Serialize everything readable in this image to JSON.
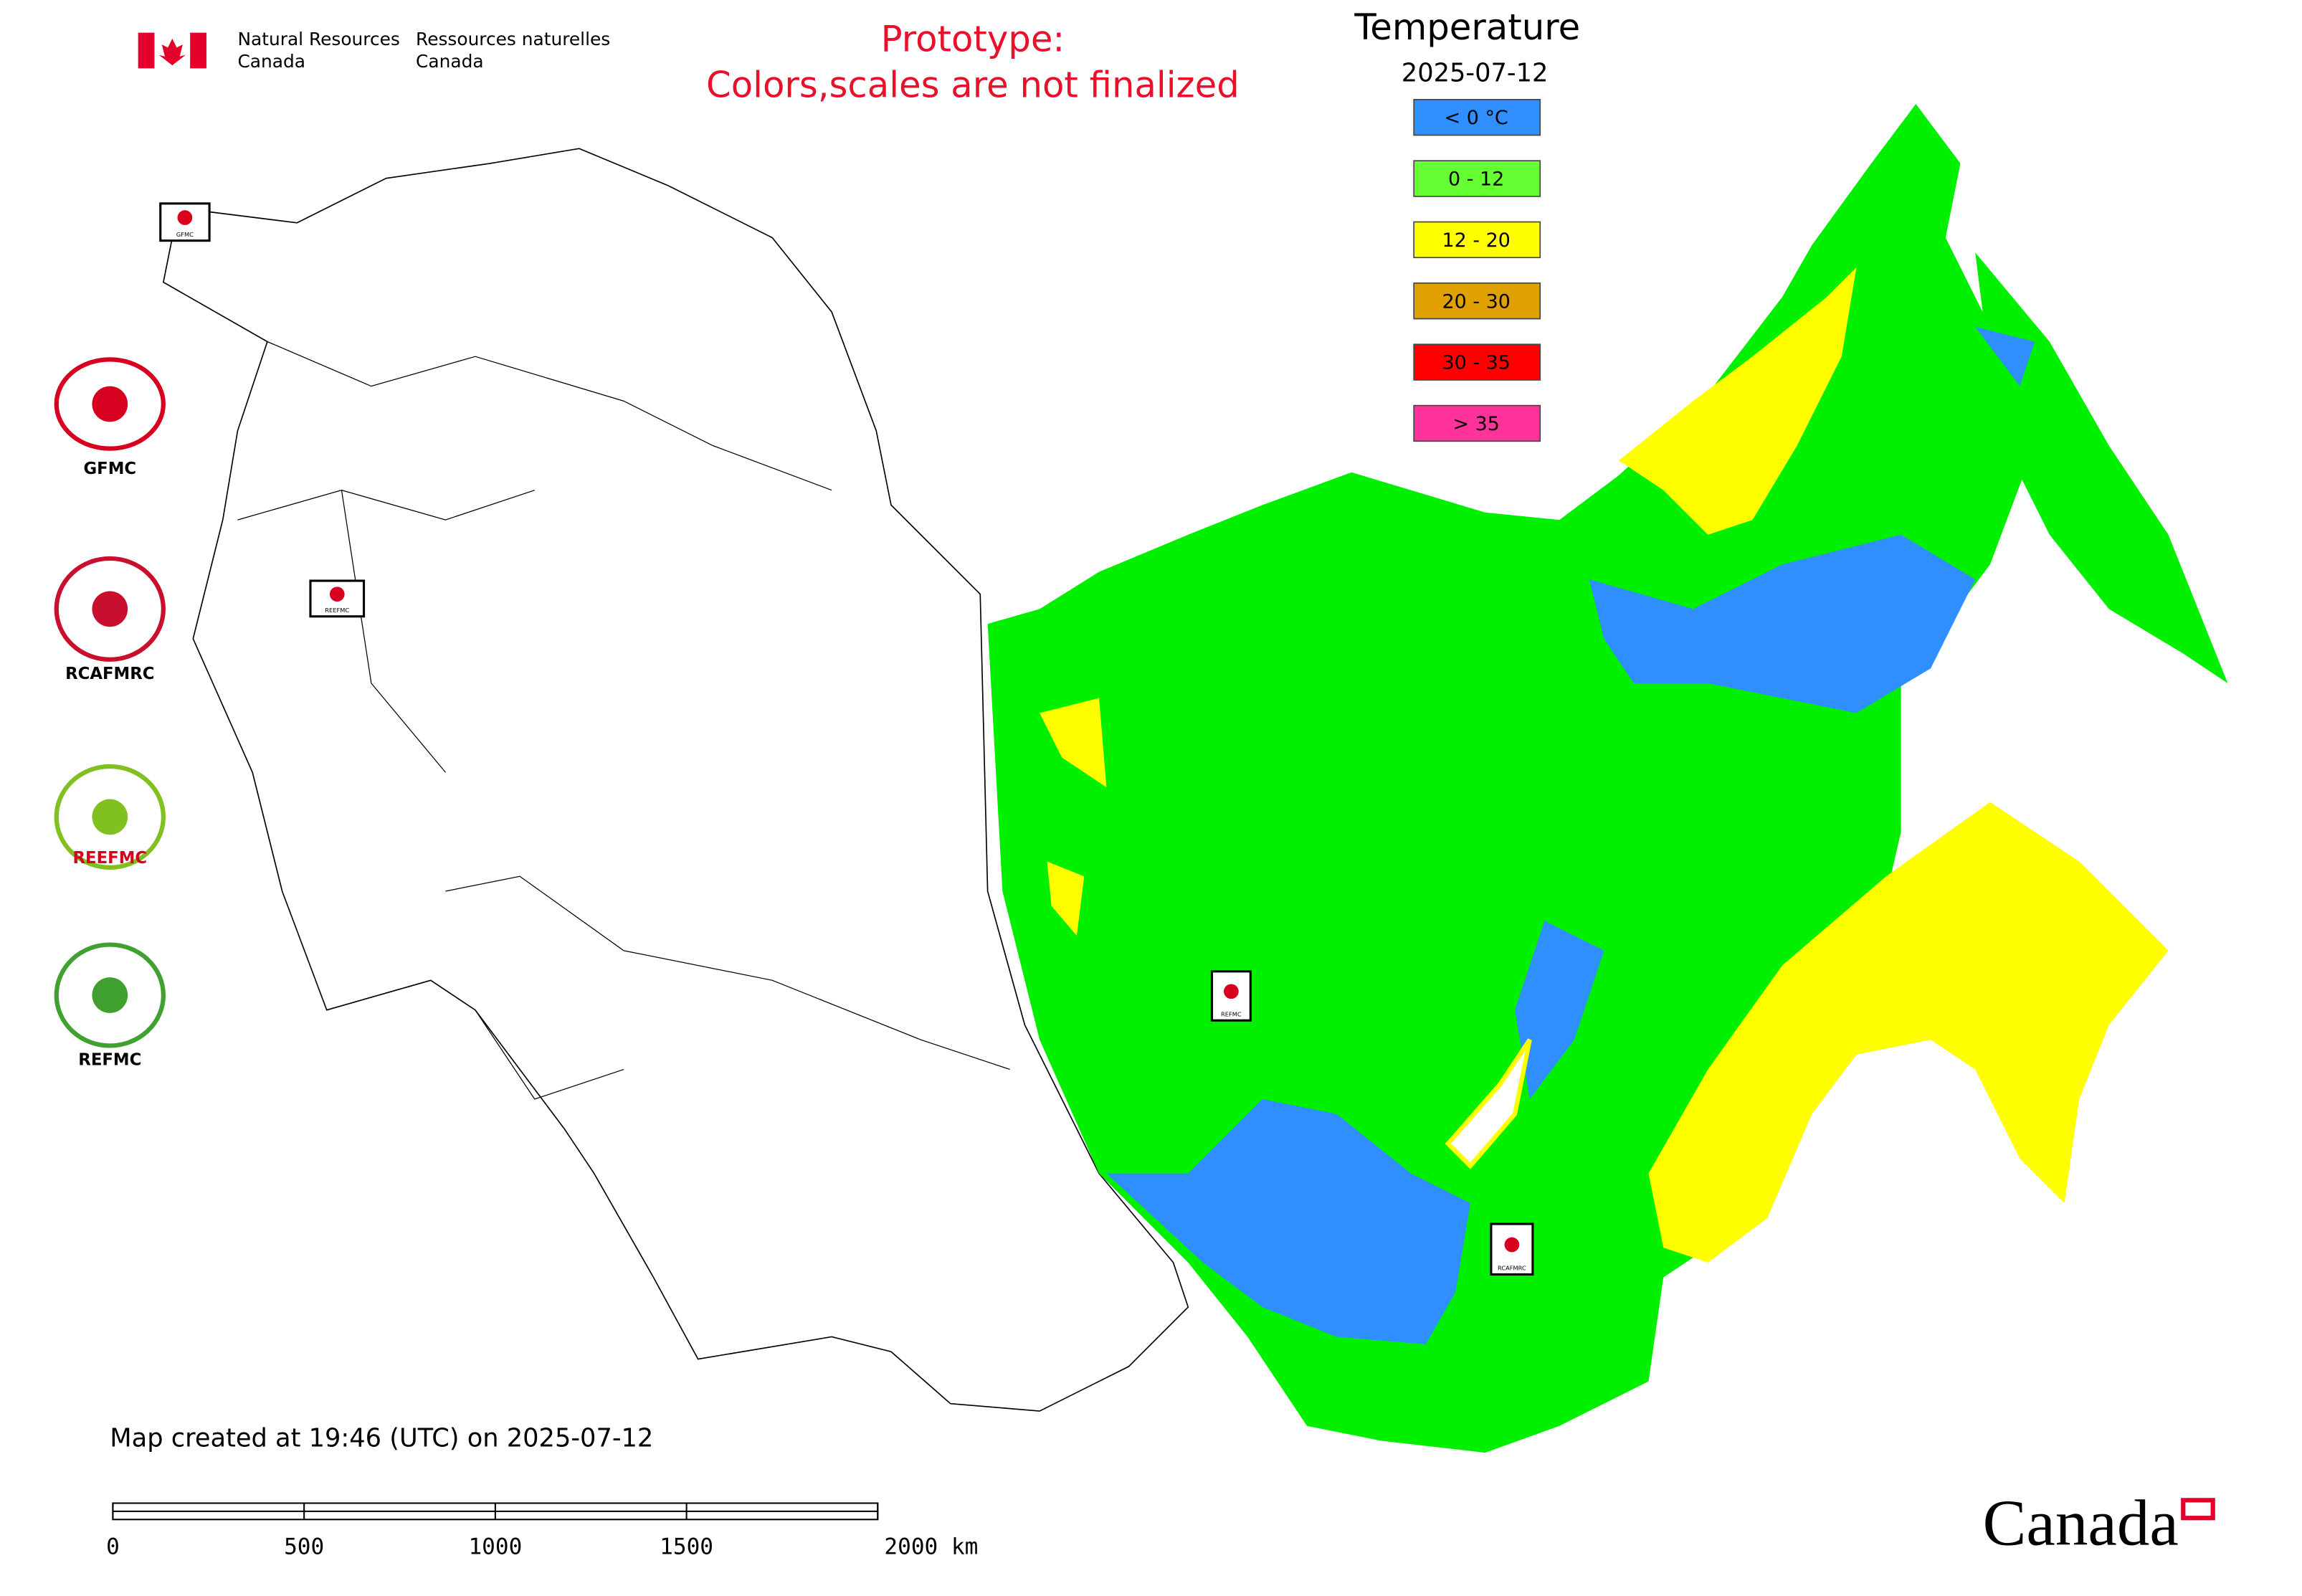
{
  "header": {
    "department_en": [
      "Natural Resources",
      "Canada"
    ],
    "department_fr": [
      "Ressources naturelles",
      "Canada"
    ],
    "notice": [
      "Prototype:",
      "Colors,scales are not finalized"
    ]
  },
  "legend": {
    "title": "Temperature",
    "date": "2025-07-12",
    "items": [
      {
        "label": "< 0 °C",
        "color": "#2f8fff"
      },
      {
        "label": "0 - 12",
        "color": "#66ff33"
      },
      {
        "label": "12 - 20",
        "color": "#ffff00"
      },
      {
        "label": "20 - 30",
        "color": "#e0a000"
      },
      {
        "label": "30 - 35",
        "color": "#ff0000"
      },
      {
        "label": "> 35",
        "color": "#ff3399"
      }
    ]
  },
  "logos": [
    "GFMC",
    "RCAFMRC",
    "REEFMC",
    "REFMC"
  ],
  "map_markers": [
    "GFMC",
    "REEFMC",
    "REFMC",
    "RCAFMRC"
  ],
  "footer": {
    "created": "Map created at 19:46 (UTC) on 2025-07-12",
    "wordmark": "Canada"
  },
  "scale_bar": {
    "ticks": [
      0,
      500,
      1000,
      1500,
      {
        "value": 2000,
        "label": "2000 km"
      }
    ],
    "lim": [
      0,
      2000
    ]
  }
}
